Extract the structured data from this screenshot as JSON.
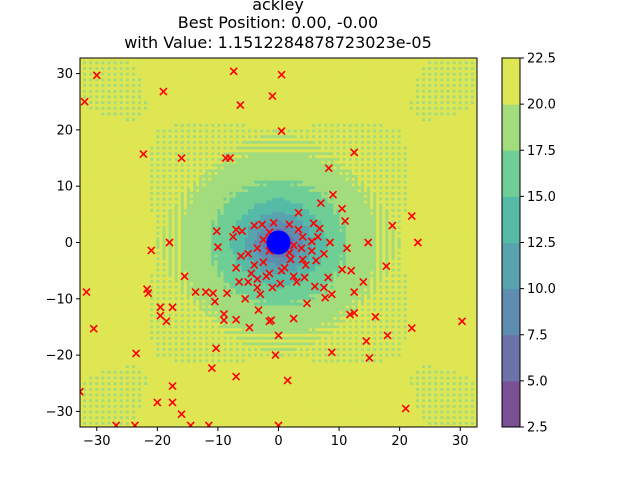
{
  "chart_data": {
    "type": "scatter",
    "title_lines": [
      "ackley",
      "Best Position: 0.00, -0.00",
      "with Value: 1.1512284878723023e-05"
    ],
    "xlabel": "",
    "ylabel": "",
    "xlim": [
      -32.768,
      32.768
    ],
    "ylim": [
      -32.768,
      32.768
    ],
    "xticks": [
      -30,
      -20,
      -10,
      0,
      10,
      20,
      30
    ],
    "yticks": [
      -30,
      -20,
      -10,
      0,
      10,
      20,
      30
    ],
    "grid": false,
    "contour": {
      "function": "ackley",
      "levels": [
        2.5,
        5.0,
        7.5,
        10.0,
        12.5,
        15.0,
        17.5,
        20.0,
        22.5
      ],
      "colors": [
        "#7a4f93",
        "#6b73a8",
        "#5e8db0",
        "#58a3ad",
        "#56bba6",
        "#6fce95",
        "#a3dc7c",
        "#dfe653"
      ],
      "colorbar_ticks": [
        "2.5",
        "5.0",
        "7.5",
        "10.0",
        "12.5",
        "15.0",
        "17.5",
        "20.0",
        "22.5"
      ]
    },
    "best_position": {
      "x": 0.0,
      "y": 0.0,
      "color": "#0000ff"
    },
    "marker_color": "#ff0000",
    "points": [
      [
        -32,
        25
      ],
      [
        -30,
        29.7
      ],
      [
        -19,
        26.8
      ],
      [
        -7.4,
        30.4
      ],
      [
        0.5,
        29.8
      ],
      [
        -1,
        26
      ],
      [
        -6.3,
        24.4
      ],
      [
        0.5,
        19.8
      ],
      [
        -22.3,
        15.7
      ],
      [
        -16,
        15
      ],
      [
        -8,
        15
      ],
      [
        -8.7,
        15
      ],
      [
        12.5,
        16
      ],
      [
        8.3,
        13.2
      ],
      [
        -10.2,
        2
      ],
      [
        -10,
        -0.8
      ],
      [
        -18,
        0
      ],
      [
        -21,
        -1.4
      ],
      [
        14.8,
        0
      ],
      [
        23,
        0
      ],
      [
        22,
        4.7
      ],
      [
        18.8,
        3
      ],
      [
        17.8,
        -4.2
      ],
      [
        11.3,
        -1
      ],
      [
        9,
        8.5
      ],
      [
        10.5,
        6
      ],
      [
        7,
        7
      ],
      [
        11,
        3.8
      ],
      [
        12,
        -5
      ],
      [
        10.5,
        -4.8
      ],
      [
        12.5,
        -8.8
      ],
      [
        7.5,
        -8
      ],
      [
        6,
        -7.8
      ],
      [
        4.7,
        -10.8
      ],
      [
        8.8,
        -9.2
      ],
      [
        7.7,
        -9.8
      ],
      [
        8.2,
        -6.2
      ],
      [
        14,
        -7
      ],
      [
        14.5,
        -17.5
      ],
      [
        15,
        -20.5
      ],
      [
        18,
        -16.5
      ],
      [
        22,
        -15.2
      ],
      [
        16,
        -13.2
      ],
      [
        11.8,
        -12.8
      ],
      [
        12.5,
        -12.5
      ],
      [
        8.8,
        -19.5
      ],
      [
        30.3,
        -14
      ],
      [
        21,
        -29.5
      ],
      [
        -31.7,
        -8.8
      ],
      [
        -30.5,
        -15.3
      ],
      [
        -21.7,
        -8.3
      ],
      [
        -21.5,
        -9
      ],
      [
        -19.5,
        -11.5
      ],
      [
        -17.5,
        -11.5
      ],
      [
        -19.5,
        -13
      ],
      [
        -18.5,
        -14
      ],
      [
        -15.5,
        -6
      ],
      [
        -13.7,
        -8.8
      ],
      [
        -12,
        -8.8
      ],
      [
        -10.8,
        -9
      ],
      [
        -10.5,
        -10.5
      ],
      [
        -10.3,
        -18.8
      ],
      [
        -11,
        -22.3
      ],
      [
        -7,
        -23.8
      ],
      [
        -9,
        -13.8
      ],
      [
        -9,
        -12.7
      ],
      [
        -7,
        -13.7
      ],
      [
        -4.8,
        -15.1
      ],
      [
        -1.2,
        -13.8
      ],
      [
        -1.5,
        -14
      ],
      [
        0,
        -16.5
      ],
      [
        -0.5,
        -20
      ],
      [
        1.5,
        -24.5
      ],
      [
        -17.5,
        -25.5
      ],
      [
        -17.5,
        -28.4
      ],
      [
        -20,
        -28.4
      ],
      [
        -23.5,
        -19.7
      ],
      [
        -16,
        -30.5
      ],
      [
        -14.5,
        -32.5
      ],
      [
        -26.8,
        -32.5
      ],
      [
        -23.7,
        -32.5
      ],
      [
        -11.5,
        -32.5
      ],
      [
        0,
        -32.5
      ],
      [
        -32.8,
        -26.5
      ],
      [
        2.5,
        -13.5
      ],
      [
        -3.3,
        -12
      ],
      [
        -4.5,
        -5.5
      ],
      [
        -5,
        -7
      ],
      [
        -3.5,
        -8
      ],
      [
        -7,
        -4.5
      ],
      [
        -1,
        -8
      ],
      [
        0.5,
        -5
      ],
      [
        2,
        -3
      ],
      [
        -5,
        -2
      ],
      [
        -2.5,
        0.5
      ],
      [
        -1.5,
        -1.5
      ],
      [
        1.8,
        -1.8
      ],
      [
        3.3,
        2.3
      ],
      [
        4,
        1
      ],
      [
        -4,
        3
      ],
      [
        -2.7,
        3.2
      ],
      [
        -0.8,
        3.5
      ],
      [
        1.8,
        3.2
      ],
      [
        3.3,
        5.3
      ],
      [
        5.8,
        3.4
      ],
      [
        6.8,
        2.5
      ],
      [
        5.5,
        0.2
      ],
      [
        6.5,
        1
      ],
      [
        2.5,
        -0.5
      ],
      [
        -1.5,
        1.8
      ],
      [
        -3.5,
        -1
      ],
      [
        -6,
        2
      ],
      [
        -7,
        2.3
      ],
      [
        -7.5,
        1
      ],
      [
        -6.2,
        -2.4
      ],
      [
        -4,
        -4
      ],
      [
        1,
        -4.5
      ],
      [
        4,
        -3
      ],
      [
        2.5,
        -6
      ],
      [
        4.5,
        -4
      ],
      [
        6.2,
        -3.2
      ],
      [
        8.5,
        0
      ],
      [
        7.5,
        -2
      ],
      [
        5.5,
        -1.5
      ],
      [
        3.8,
        -1
      ],
      [
        4.3,
        -6.2
      ],
      [
        3,
        -7
      ],
      [
        -1.5,
        -5.5
      ],
      [
        0.3,
        -7.3
      ],
      [
        -2,
        -6
      ],
      [
        -3.5,
        -6.5
      ],
      [
        -3,
        -9.2
      ],
      [
        -8.5,
        -9
      ],
      [
        -6.5,
        -7
      ],
      [
        -5.5,
        -10
      ],
      [
        -2.5,
        -3.5
      ]
    ]
  }
}
